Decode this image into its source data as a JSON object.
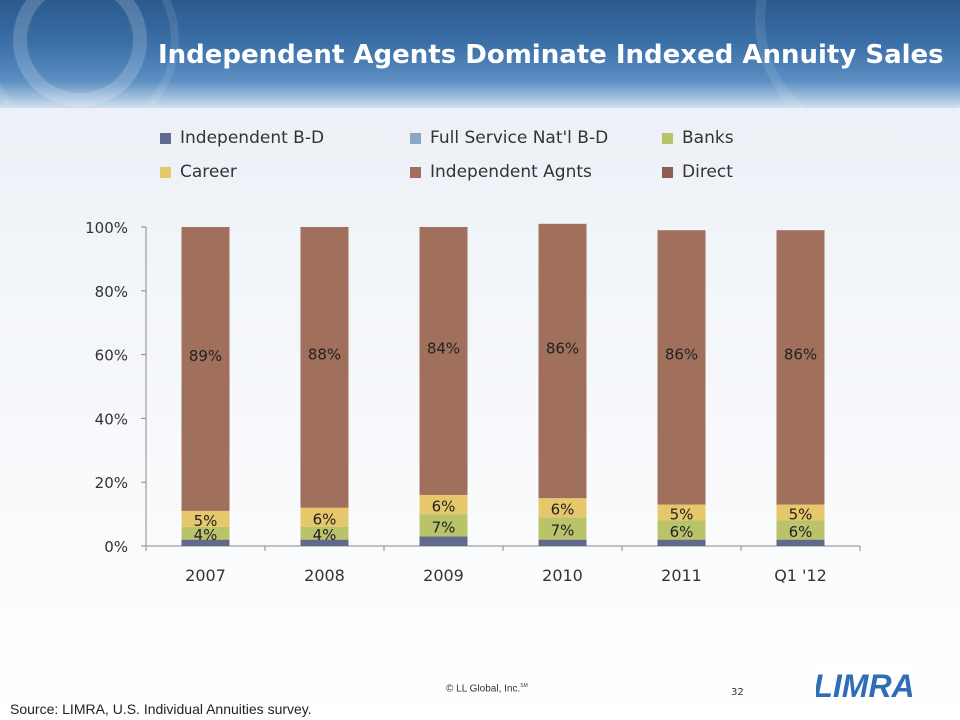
{
  "slide": {
    "title": "Independent Agents Dominate Indexed Annuity Sales",
    "source": "Source: LIMRA, U.S. Individual Annuities survey.",
    "copyright": "© LL Global, Inc.",
    "copyright_mark": "SM",
    "page_number": "32",
    "logo_text": "LIMRA"
  },
  "colors": {
    "Independent B-D": "#5f6a8c",
    "Full Service Nat'l B-D": "#8ba5c4",
    "Banks": "#b9c46a",
    "Career": "#e6c76b",
    "Independent Agnts": "#a0705c",
    "Direct": "#8c5e52"
  },
  "chart_data": {
    "type": "bar",
    "stacked": true,
    "title": "",
    "xlabel": "",
    "ylabel": "",
    "ylim": [
      0,
      100
    ],
    "y_ticks": [
      "0%",
      "20%",
      "40%",
      "60%",
      "80%",
      "100%"
    ],
    "legend_position": "top",
    "grid": false,
    "categories": [
      "2007",
      "2008",
      "2009",
      "2010",
      "2011",
      "Q1 '12"
    ],
    "series": [
      {
        "name": "Independent B-D",
        "values": [
          2,
          2,
          3,
          2,
          2,
          2
        ]
      },
      {
        "name": "Full Service Nat'l B-D",
        "values": [
          0,
          0,
          0,
          0,
          0,
          0
        ]
      },
      {
        "name": "Banks",
        "values": [
          4,
          4,
          7,
          7,
          6,
          6
        ]
      },
      {
        "name": "Career",
        "values": [
          5,
          6,
          6,
          6,
          5,
          5
        ]
      },
      {
        "name": "Independent Agnts",
        "values": [
          89,
          88,
          84,
          86,
          86,
          86
        ]
      },
      {
        "name": "Direct",
        "values": [
          0,
          0,
          0,
          0,
          0,
          0
        ]
      }
    ],
    "data_labels": {
      "Banks": [
        "4%",
        "4%",
        "7%",
        "7%",
        "6%",
        "6%"
      ],
      "Career": [
        "5%",
        "6%",
        "6%",
        "6%",
        "5%",
        "5%"
      ],
      "Independent Agnts": [
        "89%",
        "88%",
        "84%",
        "86%",
        "86%",
        "86%"
      ]
    }
  }
}
